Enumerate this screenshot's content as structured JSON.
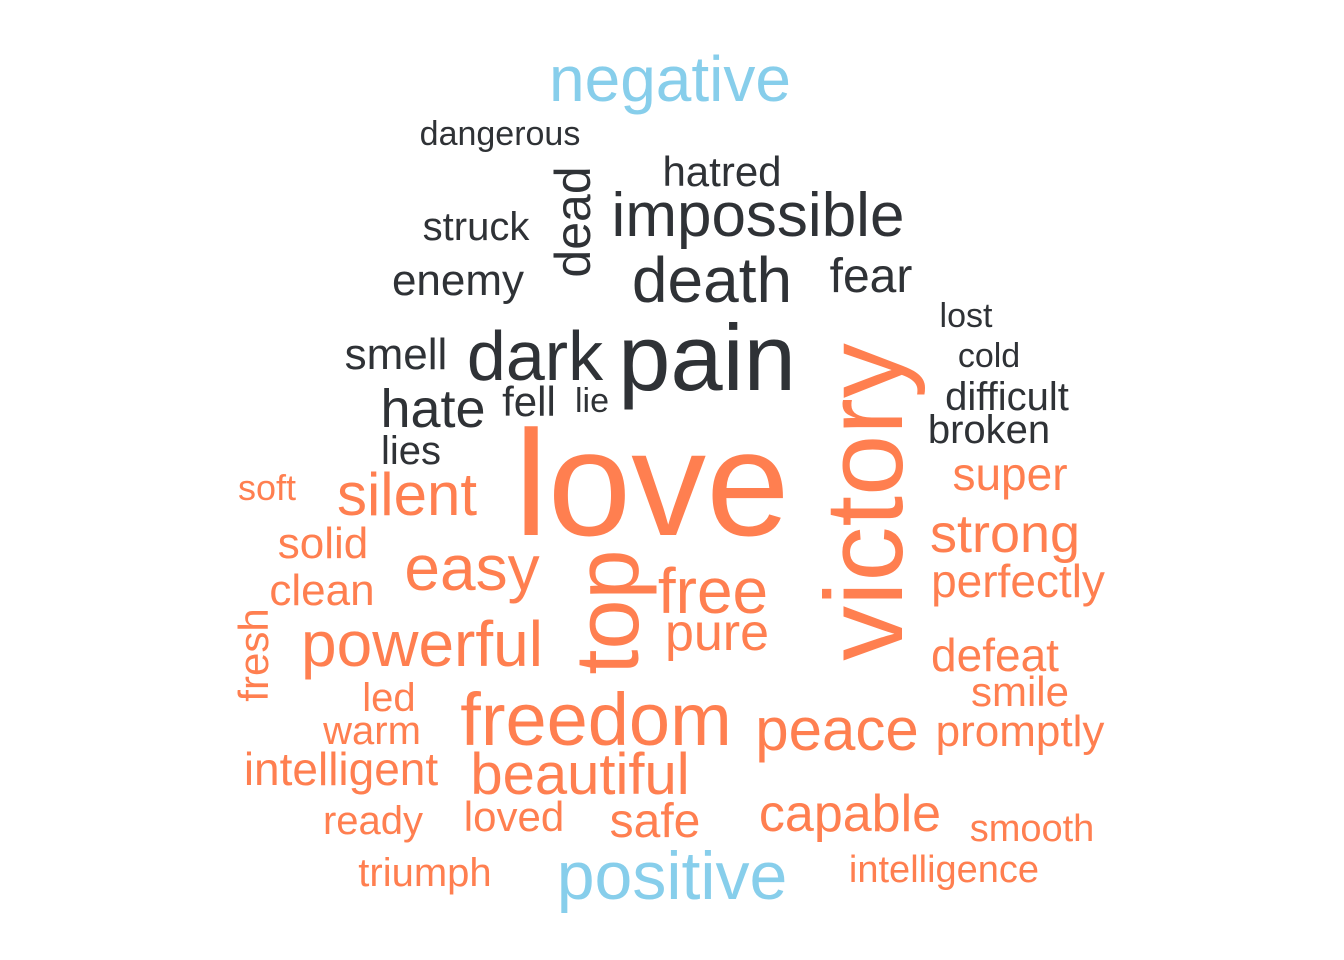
{
  "colors": {
    "negative": "#2f3236",
    "positive": "#ff7f50",
    "header": "#87ceeb"
  },
  "headers": {
    "negative": "negative",
    "positive": "positive"
  },
  "negative_words": [
    "dangerous",
    "hatred",
    "dead",
    "impossible",
    "struck",
    "death",
    "fear",
    "enemy",
    "lost",
    "cold",
    "smell",
    "dark",
    "pain",
    "difficult",
    "hate",
    "fell",
    "lie",
    "broken",
    "lies"
  ],
  "positive_words": [
    "love",
    "victory",
    "super",
    "soft",
    "silent",
    "strong",
    "solid",
    "top",
    "easy",
    "free",
    "perfectly",
    "clean",
    "fresh",
    "powerful",
    "pure",
    "defeat",
    "led",
    "smile",
    "freedom",
    "warm",
    "peace",
    "promptly",
    "intelligent",
    "beautiful",
    "ready",
    "loved",
    "safe",
    "capable",
    "smooth",
    "triumph",
    "intelligence"
  ]
}
